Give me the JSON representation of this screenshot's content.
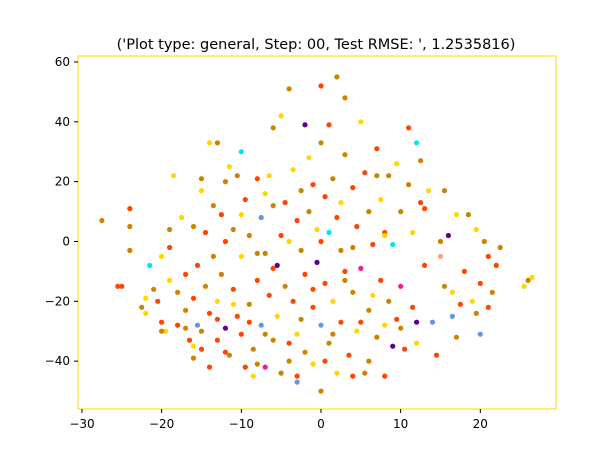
{
  "chart_data": {
    "type": "scatter",
    "title": "('Plot type: general, Step: 00, Test RMSE: ', 1.2535816)",
    "xlabel": "",
    "ylabel": "",
    "xlim": [
      -30.5,
      29.5
    ],
    "ylim": [
      -56,
      62
    ],
    "x_ticks": [
      -30,
      -20,
      -10,
      0,
      10,
      20
    ],
    "x_tick_labels": [
      "−30",
      "−20",
      "−10",
      "0",
      "10",
      "20"
    ],
    "y_ticks": [
      -40,
      -20,
      0,
      20,
      40,
      60
    ],
    "y_tick_labels": [
      "−40",
      "−20",
      "0",
      "20",
      "40",
      "60"
    ],
    "grid": false,
    "legend": "none",
    "colors": {
      "gold": "#ffd700",
      "dark-goldenrod": "#cc8400",
      "orange-red": "#ff4500",
      "cyan": "#00e5ee",
      "indigo": "#5a0090",
      "cornflower": "#6495ed",
      "magenta": "#ff1493",
      "light-salmon": "#ffa07a"
    },
    "points": [
      [
        -27.5,
        7,
        "dark-goldenrod"
      ],
      [
        -25,
        -15,
        "orange-red"
      ],
      [
        -24,
        11,
        "orange-red"
      ],
      [
        -24,
        5,
        "dark-goldenrod"
      ],
      [
        -24,
        -3,
        "dark-goldenrod"
      ],
      [
        -22,
        -19,
        "gold"
      ],
      [
        -22,
        -24,
        "gold"
      ],
      [
        -21.5,
        -8,
        "cyan"
      ],
      [
        -21,
        -16,
        "dark-goldenrod"
      ],
      [
        -20.5,
        -20,
        "orange-red"
      ],
      [
        -20,
        -5,
        "gold"
      ],
      [
        -20,
        -27,
        "orange-red"
      ],
      [
        -19.5,
        -30,
        "gold"
      ],
      [
        -19,
        -2,
        "orange-red"
      ],
      [
        -19,
        -13,
        "gold"
      ],
      [
        -18.5,
        22,
        "gold"
      ],
      [
        -18,
        -17,
        "dark-goldenrod"
      ],
      [
        -18,
        -28,
        "orange-red"
      ],
      [
        -17.5,
        8,
        "gold"
      ],
      [
        -17,
        -11,
        "orange-red"
      ],
      [
        -17,
        -23,
        "dark-goldenrod"
      ],
      [
        -16.5,
        -33,
        "orange-red"
      ],
      [
        -16,
        -39,
        "dark-goldenrod"
      ],
      [
        -16,
        -19,
        "orange-red"
      ],
      [
        -16,
        5,
        "dark-goldenrod"
      ],
      [
        -15.5,
        -8,
        "orange-red"
      ],
      [
        -15.5,
        -28,
        "cornflower"
      ],
      [
        -15,
        -30,
        "dark-goldenrod"
      ],
      [
        -15,
        -36,
        "orange-red"
      ],
      [
        -15,
        17,
        "gold"
      ],
      [
        -14.5,
        3,
        "orange-red"
      ],
      [
        -14.5,
        -15,
        "dark-goldenrod"
      ],
      [
        -14,
        33,
        "gold"
      ],
      [
        -14,
        -24,
        "orange-red"
      ],
      [
        -14,
        -42,
        "orange-red"
      ],
      [
        -13.5,
        12,
        "dark-goldenrod"
      ],
      [
        -13.5,
        -5,
        "dark-goldenrod"
      ],
      [
        -13,
        33,
        "dark-goldenrod"
      ],
      [
        -13,
        -20,
        "gold"
      ],
      [
        -13,
        -33,
        "orange-red"
      ],
      [
        -12.5,
        9,
        "orange-red"
      ],
      [
        -12.5,
        -11,
        "dark-goldenrod"
      ],
      [
        -12,
        20,
        "dark-goldenrod"
      ],
      [
        -12,
        -29,
        "indigo"
      ],
      [
        -11.5,
        25,
        "gold"
      ],
      [
        -11.5,
        -38,
        "dark-goldenrod"
      ],
      [
        -11,
        4,
        "dark-goldenrod"
      ],
      [
        -11,
        -16,
        "orange-red"
      ],
      [
        -10.5,
        22,
        "dark-goldenrod"
      ],
      [
        -10.5,
        -25,
        "orange-red"
      ],
      [
        -10,
        30,
        "cyan"
      ],
      [
        -10,
        -5,
        "gold"
      ],
      [
        -10,
        -31,
        "orange-red"
      ],
      [
        -9.5,
        14,
        "orange-red"
      ],
      [
        -9.5,
        -42,
        "orange-red"
      ],
      [
        -9,
        2,
        "dark-goldenrod"
      ],
      [
        -9,
        -21,
        "dark-goldenrod"
      ],
      [
        -8.5,
        -36,
        "dark-goldenrod"
      ],
      [
        -8.5,
        -45,
        "gold"
      ],
      [
        -8,
        21,
        "orange-red"
      ],
      [
        -8,
        -13,
        "orange-red"
      ],
      [
        -7.5,
        8,
        "cornflower"
      ],
      [
        -7.5,
        -28,
        "cornflower"
      ],
      [
        -7,
        16,
        "gold"
      ],
      [
        -7,
        -4,
        "dark-goldenrod"
      ],
      [
        -7,
        -42,
        "magenta"
      ],
      [
        -6.5,
        22,
        "gold"
      ],
      [
        -6.5,
        -18,
        "orange-red"
      ],
      [
        -6,
        -33,
        "dark-goldenrod"
      ],
      [
        -6,
        38,
        "dark-goldenrod"
      ],
      [
        -5.5,
        -8,
        "indigo"
      ],
      [
        -5.5,
        -25,
        "gold"
      ],
      [
        -5,
        42,
        "gold"
      ],
      [
        -5,
        2,
        "orange-red"
      ],
      [
        -5,
        -44,
        "dark-goldenrod"
      ],
      [
        -4.5,
        13,
        "orange-red"
      ],
      [
        -4.5,
        -15,
        "dark-goldenrod"
      ],
      [
        -4,
        -40,
        "dark-goldenrod"
      ],
      [
        -4,
        51,
        "dark-goldenrod"
      ],
      [
        -3.5,
        24,
        "gold"
      ],
      [
        -3.5,
        -20,
        "orange-red"
      ],
      [
        -3,
        7,
        "orange-red"
      ],
      [
        -3,
        -31,
        "gold"
      ],
      [
        -3,
        -47,
        "cornflower"
      ],
      [
        -2.5,
        17,
        "dark-goldenrod"
      ],
      [
        -2.5,
        -3,
        "dark-goldenrod"
      ],
      [
        -2,
        39,
        "indigo"
      ],
      [
        -2,
        -11,
        "orange-red"
      ],
      [
        -2,
        -37,
        "dark-goldenrod"
      ],
      [
        -1.5,
        28,
        "gold"
      ],
      [
        -1.5,
        10,
        "dark-goldenrod"
      ],
      [
        -1,
        -22,
        "orange-red"
      ],
      [
        -1,
        -41,
        "gold"
      ],
      [
        -0.5,
        4,
        "gold"
      ],
      [
        -0.5,
        -7,
        "indigo"
      ],
      [
        0,
        33,
        "dark-goldenrod"
      ],
      [
        0,
        52,
        "orange-red"
      ],
      [
        0,
        -28,
        "cornflower"
      ],
      [
        0,
        -50,
        "dark-goldenrod"
      ],
      [
        0.5,
        15,
        "orange-red"
      ],
      [
        0.5,
        -14,
        "orange-red"
      ],
      [
        1,
        39,
        "orange-red"
      ],
      [
        1,
        3,
        "cyan"
      ],
      [
        1,
        -34,
        "dark-goldenrod"
      ],
      [
        1.5,
        21,
        "dark-goldenrod"
      ],
      [
        1.5,
        -20,
        "gold"
      ],
      [
        2,
        55,
        "dark-goldenrod"
      ],
      [
        2,
        8,
        "orange-red"
      ],
      [
        2,
        -44,
        "gold"
      ],
      [
        2.5,
        -3,
        "dark-goldenrod"
      ],
      [
        2.5,
        -27,
        "orange-red"
      ],
      [
        3,
        29,
        "dark-goldenrod"
      ],
      [
        3,
        48,
        "dark-goldenrod"
      ],
      [
        3,
        -10,
        "orange-red"
      ],
      [
        3.5,
        -38,
        "orange-red"
      ],
      [
        4,
        18,
        "orange-red"
      ],
      [
        4,
        -17,
        "dark-goldenrod"
      ],
      [
        4.5,
        5,
        "orange-red"
      ],
      [
        4.5,
        -30,
        "gold"
      ],
      [
        5,
        40,
        "gold"
      ],
      [
        5,
        -9,
        "magenta"
      ],
      [
        5.5,
        23,
        "orange-red"
      ],
      [
        5.5,
        -44,
        "dark-goldenrod"
      ],
      [
        6,
        10,
        "dark-goldenrod"
      ],
      [
        6,
        -23,
        "dark-goldenrod"
      ],
      [
        6.5,
        -1,
        "orange-red"
      ],
      [
        7,
        31,
        "orange-red"
      ],
      [
        7,
        -32,
        "dark-goldenrod"
      ],
      [
        7.5,
        14,
        "gold"
      ],
      [
        7.5,
        -13,
        "orange-red"
      ],
      [
        8,
        3,
        "orange-red"
      ],
      [
        8,
        -45,
        "orange-red"
      ],
      [
        8.5,
        22,
        "dark-goldenrod"
      ],
      [
        8.5,
        -20,
        "dark-goldenrod"
      ],
      [
        9,
        -1,
        "cyan"
      ],
      [
        9,
        -35,
        "indigo"
      ],
      [
        9.5,
        26,
        "gold"
      ],
      [
        9.5,
        -26,
        "orange-red"
      ],
      [
        10,
        10,
        "dark-goldenrod"
      ],
      [
        10,
        -15,
        "magenta"
      ],
      [
        10.5,
        -36,
        "orange-red"
      ],
      [
        11,
        38,
        "orange-red"
      ],
      [
        11,
        19,
        "dark-goldenrod"
      ],
      [
        11.5,
        3,
        "gold"
      ],
      [
        11.5,
        -22,
        "orange-red"
      ],
      [
        12,
        33,
        "cyan"
      ],
      [
        12,
        -27,
        "indigo"
      ],
      [
        12.5,
        27,
        "dark-goldenrod"
      ],
      [
        13,
        11,
        "orange-red"
      ],
      [
        13,
        -8,
        "orange-red"
      ],
      [
        13.5,
        17,
        "gold"
      ],
      [
        14,
        -27,
        "cornflower"
      ],
      [
        14.5,
        -38,
        "orange-red"
      ],
      [
        15,
        0,
        "dark-goldenrod"
      ],
      [
        15,
        -5,
        "light-salmon"
      ],
      [
        15.5,
        17,
        "dark-goldenrod"
      ],
      [
        16,
        2,
        "indigo"
      ],
      [
        16.5,
        -17,
        "gold"
      ],
      [
        16.5,
        -25,
        "cornflower"
      ],
      [
        17,
        9,
        "gold"
      ],
      [
        17,
        -32,
        "dark-goldenrod"
      ],
      [
        18,
        -10,
        "orange-red"
      ],
      [
        18.5,
        9,
        "dark-goldenrod"
      ],
      [
        19,
        -20,
        "gold"
      ],
      [
        19.5,
        4,
        "gold"
      ],
      [
        20,
        -31,
        "cornflower"
      ],
      [
        20,
        -14,
        "orange-red"
      ],
      [
        20.5,
        0,
        "dark-goldenrod"
      ],
      [
        21,
        -5,
        "orange-red"
      ],
      [
        21.5,
        -17,
        "dark-goldenrod"
      ],
      [
        22,
        -8,
        "orange-red"
      ],
      [
        22.5,
        -2,
        "dark-goldenrod"
      ],
      [
        25.5,
        -15,
        "gold"
      ],
      [
        26,
        -13,
        "dark-goldenrod"
      ],
      [
        26.5,
        -12,
        "gold"
      ],
      [
        -25.5,
        -15,
        "orange-red"
      ],
      [
        -22.5,
        -22,
        "dark-goldenrod"
      ],
      [
        -20,
        -30,
        "dark-goldenrod"
      ],
      [
        -16,
        -35,
        "gold"
      ],
      [
        -13,
        -26,
        "orange-red"
      ],
      [
        -11,
        -21,
        "gold"
      ],
      [
        -9,
        -27,
        "orange-red"
      ],
      [
        -8,
        -41,
        "dark-goldenrod"
      ],
      [
        -6,
        -9,
        "orange-red"
      ],
      [
        -4,
        -34,
        "orange-red"
      ],
      [
        -2.5,
        -26,
        "dark-goldenrod"
      ],
      [
        -1,
        -16,
        "orange-red"
      ],
      [
        0.5,
        -40,
        "orange-red"
      ],
      [
        3,
        -13,
        "dark-goldenrod"
      ],
      [
        5,
        -27,
        "orange-red"
      ],
      [
        6.5,
        -18,
        "gold"
      ],
      [
        8,
        -28,
        "gold"
      ],
      [
        10,
        -29,
        "dark-goldenrod"
      ],
      [
        12,
        -34,
        "gold"
      ],
      [
        -17,
        -29,
        "dark-goldenrod"
      ],
      [
        -12,
        -37,
        "orange-red"
      ],
      [
        -7,
        -31,
        "dark-goldenrod"
      ],
      [
        -3,
        -45,
        "orange-red"
      ],
      [
        1.5,
        -31,
        "dark-goldenrod"
      ],
      [
        4,
        -45,
        "orange-red"
      ],
      [
        6,
        -40,
        "dark-goldenrod"
      ],
      [
        -10,
        9,
        "gold"
      ],
      [
        -6,
        12,
        "dark-goldenrod"
      ],
      [
        -1,
        19,
        "orange-red"
      ],
      [
        2.5,
        13,
        "gold"
      ],
      [
        7,
        22,
        "dark-goldenrod"
      ],
      [
        12.5,
        13,
        "orange-red"
      ],
      [
        -15,
        21,
        "dark-goldenrod"
      ],
      [
        -12,
        0,
        "orange-red"
      ],
      [
        -8,
        -4,
        "dark-goldenrod"
      ],
      [
        -4,
        0,
        "gold"
      ],
      [
        0,
        0,
        "orange-red"
      ],
      [
        4,
        -2,
        "dark-goldenrod"
      ],
      [
        8,
        2,
        "gold"
      ],
      [
        -19,
        4,
        "dark-goldenrod"
      ],
      [
        17.5,
        -21,
        "orange-red"
      ],
      [
        19.5,
        -24,
        "dark-goldenrod"
      ],
      [
        21,
        -22,
        "orange-red"
      ],
      [
        15.5,
        -15,
        "dark-goldenrod"
      ]
    ]
  }
}
